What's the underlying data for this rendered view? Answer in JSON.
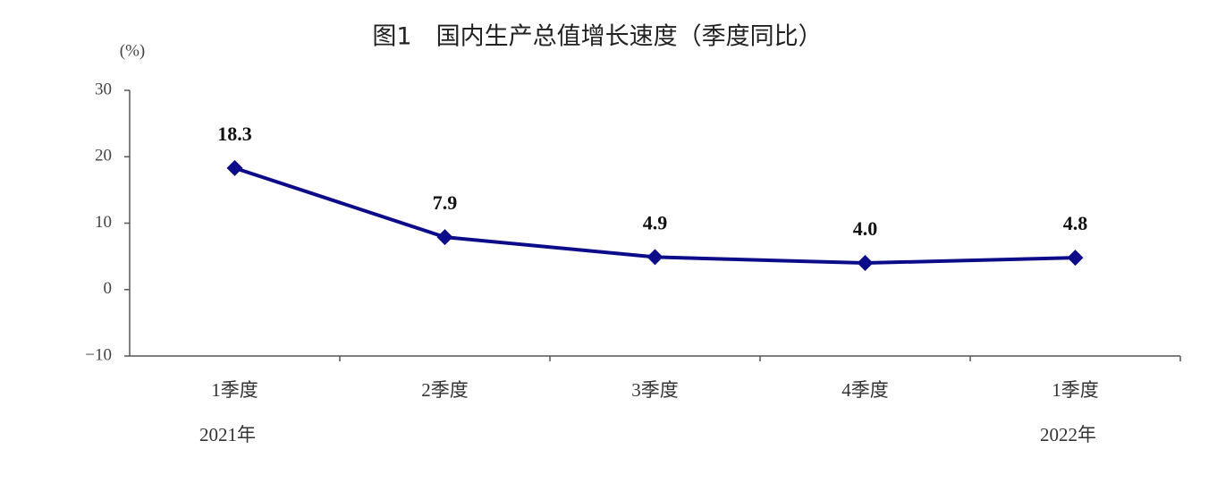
{
  "chart_data": {
    "type": "line",
    "title": "图1　国内生产总值增长速度（季度同比）",
    "y_unit": "(%)",
    "categories": [
      "1季度",
      "2季度",
      "3季度",
      "4季度",
      "1季度"
    ],
    "year_labels": [
      "2021年",
      null,
      null,
      null,
      "2022年"
    ],
    "values": [
      18.3,
      7.9,
      4.9,
      4.0,
      4.8
    ],
    "value_labels": [
      "18.3",
      "7.9",
      "4.9",
      "4.0",
      "4.8"
    ],
    "color": "#0c0c8a",
    "ylim": [
      -10,
      30
    ],
    "yticks": [
      {
        "value": -10,
        "label": "−10"
      },
      0,
      10,
      20,
      30
    ]
  }
}
